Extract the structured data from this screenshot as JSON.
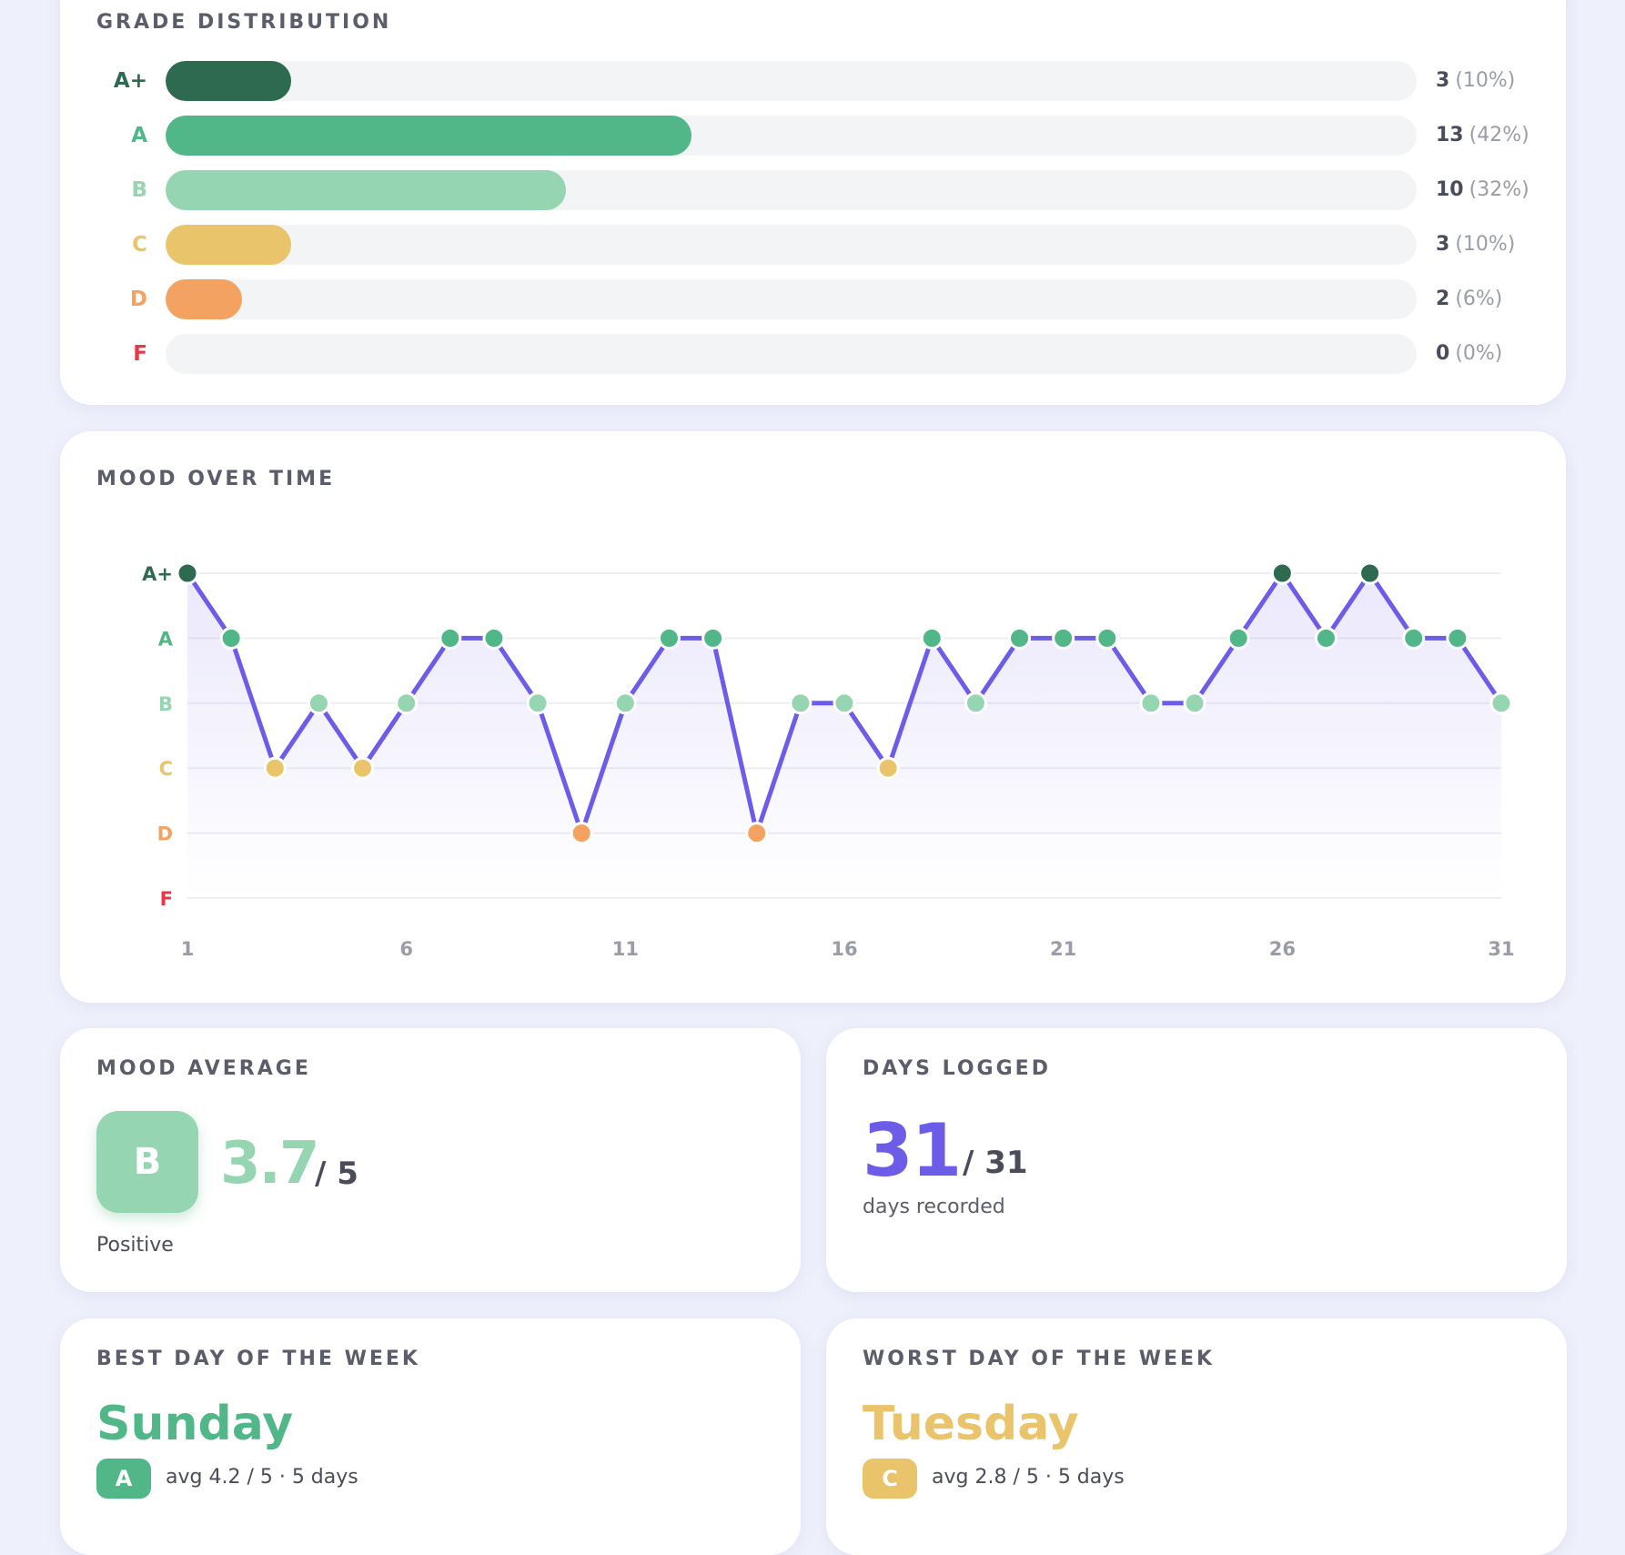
{
  "grade_distribution": {
    "title": "GRADE DISTRIBUTION",
    "rows": [
      {
        "grade": "A+",
        "count": "3",
        "pct": "(10%)",
        "fraction": 0.1,
        "color": "#2d6a4f"
      },
      {
        "grade": "A",
        "count": "13",
        "pct": "(42%)",
        "fraction": 0.42,
        "color": "#52b788"
      },
      {
        "grade": "B",
        "count": "10",
        "pct": "(32%)",
        "fraction": 0.32,
        "color": "#95d5b2"
      },
      {
        "grade": "C",
        "count": "3",
        "pct": "(10%)",
        "fraction": 0.1,
        "color": "#e9c46a"
      },
      {
        "grade": "D",
        "count": "2",
        "pct": "(6%)",
        "fraction": 0.06,
        "color": "#f4a261"
      },
      {
        "grade": "F",
        "count": "0",
        "pct": "(0%)",
        "fraction": 0.0,
        "color": "#e63946"
      }
    ]
  },
  "mood_over_time": {
    "title": "MOOD OVER TIME",
    "line_color": "#6c5ce7"
  },
  "chart_data": {
    "type": "line",
    "title": "MOOD OVER TIME",
    "x": [
      1,
      2,
      3,
      4,
      5,
      6,
      7,
      8,
      9,
      10,
      11,
      12,
      13,
      14,
      15,
      16,
      17,
      18,
      19,
      20,
      21,
      22,
      23,
      24,
      25,
      26,
      27,
      28,
      29,
      30,
      31
    ],
    "y_categories": [
      "F",
      "D",
      "C",
      "B",
      "A",
      "A+"
    ],
    "y_colors": [
      "#e63946",
      "#f4a261",
      "#e9c46a",
      "#95d5b2",
      "#52b788",
      "#2d6a4f"
    ],
    "series": [
      {
        "values": [
          "A+",
          "A",
          "C",
          "B",
          "C",
          "B",
          "A",
          "A",
          "B",
          "D",
          "B",
          "A",
          "A",
          "D",
          "B",
          "B",
          "C",
          "A",
          "B",
          "A",
          "A",
          "A",
          "B",
          "B",
          "A",
          "A+",
          "A",
          "A+",
          "A",
          "A",
          "B"
        ]
      }
    ],
    "x_ticks": [
      1,
      6,
      11,
      16,
      21,
      26,
      31
    ],
    "xlim": [
      1,
      31
    ],
    "grid": true
  },
  "mood_average": {
    "title": "MOOD AVERAGE",
    "grade": "B",
    "value": "3.7",
    "of": "/ 5",
    "caption": "Positive"
  },
  "days_logged": {
    "title": "DAYS LOGGED",
    "value": "31",
    "of": "/ 31",
    "caption": "days recorded"
  },
  "best_day": {
    "title": "BEST DAY OF THE WEEK",
    "day": "Sunday",
    "grade": "A",
    "info": "avg 4.2 / 5 · 5 days",
    "color": "#52b788"
  },
  "worst_day": {
    "title": "WORST DAY OF THE WEEK",
    "day": "Tuesday",
    "grade": "C",
    "info": "avg 2.8 / 5 · 5 days",
    "color": "#e9c46a"
  }
}
